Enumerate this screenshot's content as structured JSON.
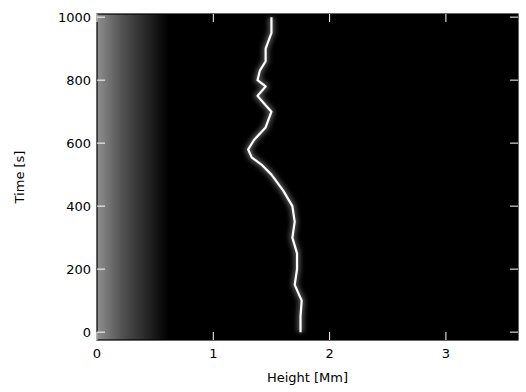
{
  "chart_data": {
    "type": "line",
    "x_label": "Height [Mm]",
    "y_label": "Time [s]",
    "x": [
      1.75,
      1.75,
      1.76,
      1.7,
      1.72,
      1.72,
      1.68,
      1.7,
      1.68,
      1.6,
      1.5,
      1.42,
      1.33,
      1.3,
      1.35,
      1.45,
      1.5,
      1.45,
      1.38,
      1.45,
      1.38,
      1.4,
      1.45,
      1.45,
      1.5,
      1.5
    ],
    "series": [
      {
        "color": "#ffffff",
        "values": [
          0,
          50,
          100,
          150,
          200,
          250,
          300,
          350,
          400,
          450,
          500,
          530,
          555,
          580,
          610,
          650,
          700,
          720,
          750,
          780,
          800,
          830,
          860,
          900,
          950,
          1000
        ]
      }
    ],
    "xlim": [
      0,
      3.62
    ],
    "ylim": [
      -25,
      1010
    ],
    "xticks": [
      0,
      1,
      2,
      3
    ],
    "yticks": [
      0,
      200,
      400,
      600,
      800,
      1000
    ],
    "grid": false
  }
}
